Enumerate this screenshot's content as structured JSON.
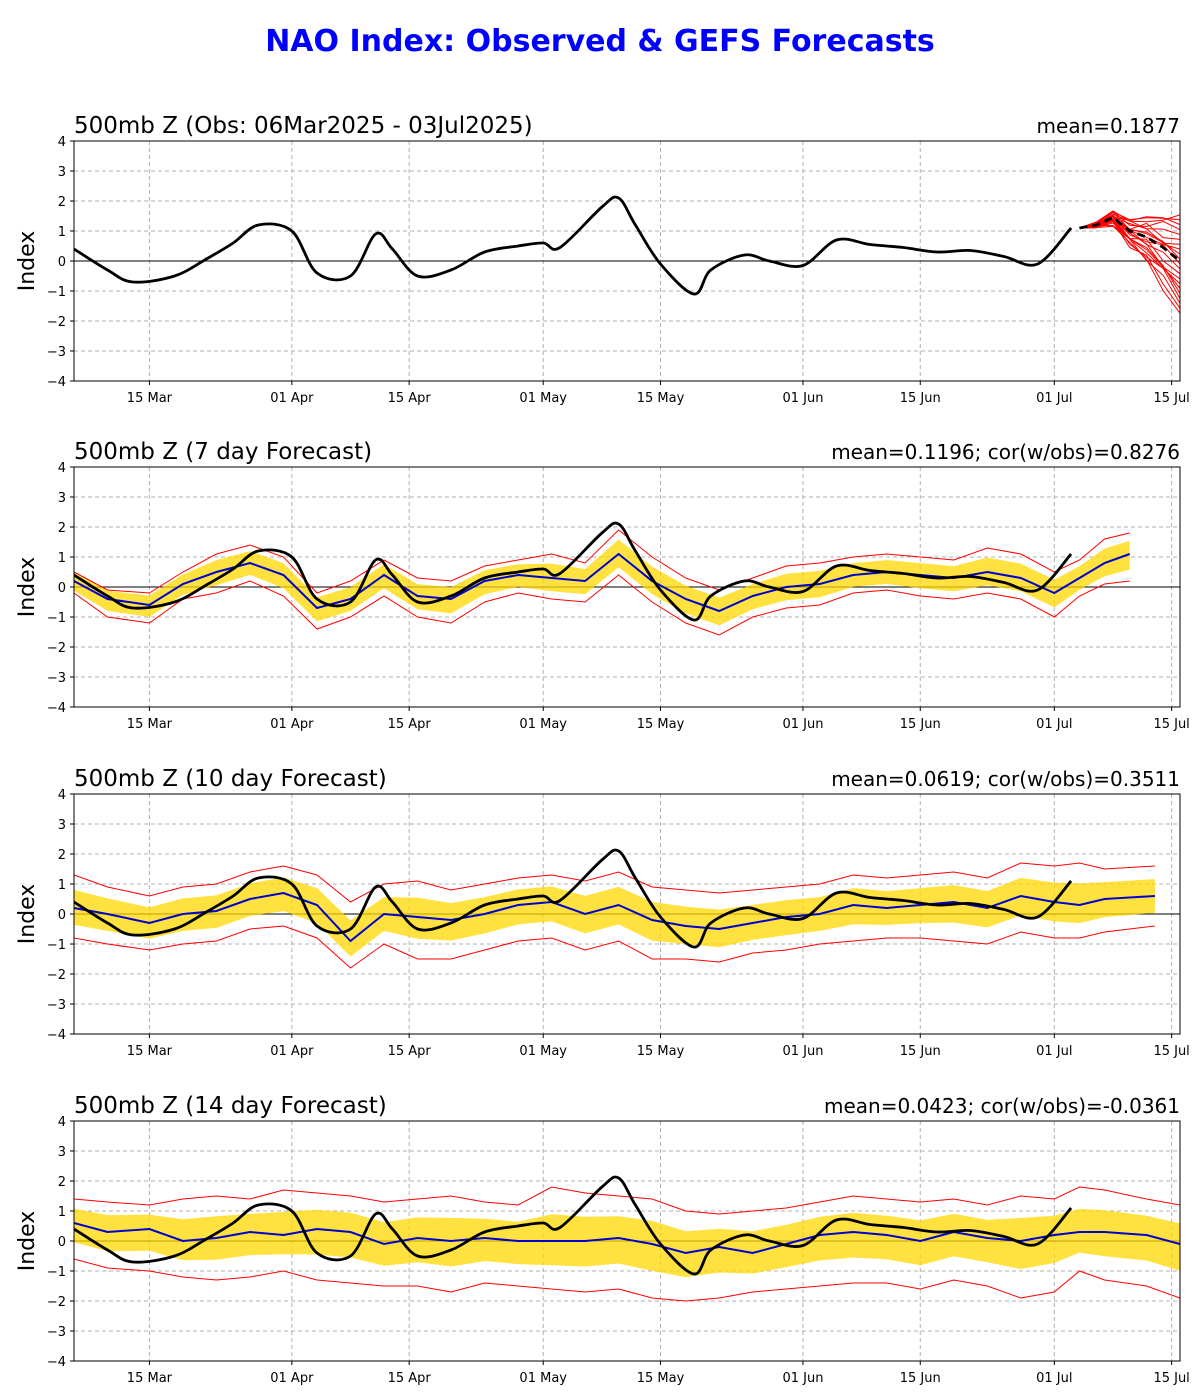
{
  "figure": {
    "title": "NAO Index: Observed & GEFS Forecasts",
    "title_color": "#0000ff"
  },
  "axis_common": {
    "ylabel": "Index",
    "ylim": [
      -4,
      4
    ],
    "yticks": [
      "4",
      "3",
      "2",
      "1",
      "0",
      "−1",
      "−2",
      "−3",
      "−4"
    ],
    "xtick_labels": [
      "15 Mar",
      "01 Apr",
      "15 Apr",
      "01 May",
      "15 May",
      "01 Jun",
      "15 Jun",
      "01 Jul",
      "15 Jul"
    ],
    "grid": "on (dashed)",
    "colors": {
      "observed": "#000000",
      "ensemble_mean": "#0000cc",
      "spread": "#ffd700",
      "bounds": "#ff0000"
    }
  },
  "chart_data": [
    {
      "type": "line",
      "title": "500mb Z (Obs: 06Mar2025 - 03Jul2025)",
      "stat": "mean=0.1877",
      "ylabel": "Index",
      "ylim": [
        -4,
        4
      ],
      "x_range": [
        "2025-03-06",
        "2025-07-16"
      ],
      "x": [
        "2025-03-06",
        "2025-03-10",
        "2025-03-13",
        "2025-03-18",
        "2025-03-22",
        "2025-03-25",
        "2025-03-28",
        "2025-04-01",
        "2025-04-04",
        "2025-04-08",
        "2025-04-11",
        "2025-04-13",
        "2025-04-16",
        "2025-04-20",
        "2025-04-24",
        "2025-04-28",
        "2025-05-01",
        "2025-05-03",
        "2025-05-08",
        "2025-05-10",
        "2025-05-12",
        "2025-05-15",
        "2025-05-19",
        "2025-05-21",
        "2025-05-25",
        "2025-05-28",
        "2025-06-01",
        "2025-06-05",
        "2025-06-09",
        "2025-06-13",
        "2025-06-17",
        "2025-06-21",
        "2025-06-25",
        "2025-06-29",
        "2025-07-03"
      ],
      "series": [
        {
          "name": "",
          "kind": "observed",
          "values": [
            0.4,
            -0.3,
            -0.7,
            -0.5,
            0.1,
            0.6,
            1.2,
            1.0,
            -0.4,
            -0.5,
            0.9,
            0.4,
            -0.5,
            -0.3,
            0.3,
            0.5,
            0.6,
            0.45,
            1.8,
            2.1,
            1.2,
            -0.1,
            -1.1,
            -0.3,
            0.2,
            0.0,
            -0.15,
            0.7,
            0.55,
            0.45,
            0.3,
            0.35,
            0.15,
            -0.1,
            1.1
          ]
        },
        {
          "name": "",
          "kind": "forecast_mean",
          "x": [
            "2025-07-04",
            "2025-07-06",
            "2025-07-08",
            "2025-07-10",
            "2025-07-12",
            "2025-07-14",
            "2025-07-16"
          ],
          "values": [
            1.1,
            1.2,
            1.45,
            1.0,
            0.8,
            0.45,
            0.0
          ]
        }
      ],
      "ensemble_members": 21,
      "ensemble_range_end": [
        -1.6,
        1.3
      ]
    },
    {
      "type": "line",
      "title": "500mb Z (7 day Forecast)",
      "stat": "mean=0.1196; cor(w/obs)=0.8276",
      "ylabel": "Index",
      "ylim": [
        -4,
        4
      ],
      "x_range": [
        "2025-03-06",
        "2025-07-16"
      ],
      "x": [
        "2025-03-06",
        "2025-03-10",
        "2025-03-15",
        "2025-03-19",
        "2025-03-23",
        "2025-03-27",
        "2025-03-31",
        "2025-04-04",
        "2025-04-08",
        "2025-04-12",
        "2025-04-16",
        "2025-04-20",
        "2025-04-24",
        "2025-04-28",
        "2025-05-02",
        "2025-05-06",
        "2025-05-10",
        "2025-05-14",
        "2025-05-18",
        "2025-05-22",
        "2025-05-26",
        "2025-05-30",
        "2025-06-03",
        "2025-06-07",
        "2025-06-11",
        "2025-06-15",
        "2025-06-19",
        "2025-06-23",
        "2025-06-27",
        "2025-07-01",
        "2025-07-04",
        "2025-07-07",
        "2025-07-10"
      ],
      "series": [
        {
          "name": "",
          "kind": "ensemble_mean",
          "values": [
            0.2,
            -0.4,
            -0.6,
            0.1,
            0.5,
            0.8,
            0.4,
            -0.7,
            -0.4,
            0.4,
            -0.3,
            -0.4,
            0.2,
            0.4,
            0.3,
            0.2,
            1.1,
            0.2,
            -0.4,
            -0.8,
            -0.3,
            0.0,
            0.1,
            0.4,
            0.5,
            0.4,
            0.3,
            0.5,
            0.3,
            -0.2,
            0.3,
            0.8,
            1.1
          ]
        },
        {
          "name": "",
          "kind": "upper_bound",
          "values": [
            0.5,
            -0.1,
            -0.2,
            0.5,
            1.1,
            1.4,
            1.0,
            -0.2,
            0.2,
            0.9,
            0.3,
            0.2,
            0.7,
            0.9,
            1.1,
            0.8,
            1.9,
            1.0,
            0.3,
            -0.1,
            0.3,
            0.7,
            0.8,
            1.0,
            1.1,
            1.0,
            0.9,
            1.3,
            1.1,
            0.5,
            0.9,
            1.6,
            1.8
          ]
        },
        {
          "name": "",
          "kind": "lower_bound",
          "values": [
            -0.2,
            -1.0,
            -1.2,
            -0.4,
            -0.2,
            0.2,
            -0.3,
            -1.4,
            -1.0,
            -0.3,
            -1.0,
            -1.2,
            -0.5,
            -0.2,
            -0.4,
            -0.5,
            0.4,
            -0.5,
            -1.2,
            -1.6,
            -1.0,
            -0.7,
            -0.6,
            -0.2,
            -0.1,
            -0.3,
            -0.4,
            -0.2,
            -0.4,
            -1.0,
            -0.3,
            0.1,
            0.2
          ]
        },
        {
          "name": "",
          "kind": "observed",
          "x": [
            "2025-03-06",
            "2025-03-10",
            "2025-03-13",
            "2025-03-18",
            "2025-03-22",
            "2025-03-25",
            "2025-03-28",
            "2025-04-01",
            "2025-04-04",
            "2025-04-08",
            "2025-04-11",
            "2025-04-13",
            "2025-04-16",
            "2025-04-20",
            "2025-04-24",
            "2025-04-28",
            "2025-05-01",
            "2025-05-03",
            "2025-05-08",
            "2025-05-10",
            "2025-05-12",
            "2025-05-15",
            "2025-05-19",
            "2025-05-21",
            "2025-05-25",
            "2025-05-28",
            "2025-06-01",
            "2025-06-05",
            "2025-06-09",
            "2025-06-13",
            "2025-06-17",
            "2025-06-21",
            "2025-06-25",
            "2025-06-29",
            "2025-07-03"
          ],
          "values": [
            0.4,
            -0.3,
            -0.7,
            -0.5,
            0.1,
            0.6,
            1.2,
            1.0,
            -0.4,
            -0.5,
            0.9,
            0.4,
            -0.5,
            -0.3,
            0.3,
            0.5,
            0.6,
            0.45,
            1.8,
            2.1,
            1.2,
            -0.1,
            -1.1,
            -0.3,
            0.2,
            0.0,
            -0.15,
            0.7,
            0.55,
            0.45,
            0.3,
            0.35,
            0.15,
            -0.1,
            1.1
          ]
        }
      ]
    },
    {
      "type": "line",
      "title": "500mb Z (10 day Forecast)",
      "stat": "mean=0.0619; cor(w/obs)=0.3511",
      "ylabel": "Index",
      "ylim": [
        -4,
        4
      ],
      "x_range": [
        "2025-03-06",
        "2025-07-16"
      ],
      "x": [
        "2025-03-06",
        "2025-03-10",
        "2025-03-15",
        "2025-03-19",
        "2025-03-23",
        "2025-03-27",
        "2025-03-31",
        "2025-04-04",
        "2025-04-08",
        "2025-04-12",
        "2025-04-16",
        "2025-04-20",
        "2025-04-24",
        "2025-04-28",
        "2025-05-02",
        "2025-05-06",
        "2025-05-10",
        "2025-05-14",
        "2025-05-18",
        "2025-05-22",
        "2025-05-26",
        "2025-05-30",
        "2025-06-03",
        "2025-06-07",
        "2025-06-11",
        "2025-06-15",
        "2025-06-19",
        "2025-06-23",
        "2025-06-27",
        "2025-07-01",
        "2025-07-04",
        "2025-07-07",
        "2025-07-13"
      ],
      "series": [
        {
          "name": "",
          "kind": "ensemble_mean",
          "values": [
            0.2,
            0.0,
            -0.3,
            0.0,
            0.1,
            0.5,
            0.7,
            0.3,
            -0.9,
            0.0,
            -0.1,
            -0.2,
            0.0,
            0.3,
            0.4,
            0.0,
            0.3,
            -0.2,
            -0.4,
            -0.5,
            -0.3,
            -0.1,
            0.0,
            0.3,
            0.2,
            0.3,
            0.4,
            0.2,
            0.6,
            0.4,
            0.3,
            0.5,
            0.6
          ]
        },
        {
          "name": "",
          "kind": "upper_bound",
          "values": [
            1.3,
            0.9,
            0.6,
            0.9,
            1.0,
            1.4,
            1.6,
            1.3,
            0.4,
            1.0,
            1.1,
            0.8,
            1.0,
            1.2,
            1.3,
            1.1,
            1.4,
            0.9,
            0.8,
            0.7,
            0.8,
            0.9,
            1.0,
            1.3,
            1.2,
            1.3,
            1.4,
            1.2,
            1.7,
            1.6,
            1.7,
            1.5,
            1.6
          ]
        },
        {
          "name": "",
          "kind": "lower_bound",
          "values": [
            -0.8,
            -1.0,
            -1.2,
            -1.0,
            -0.9,
            -0.5,
            -0.4,
            -0.8,
            -1.8,
            -1.0,
            -1.5,
            -1.5,
            -1.2,
            -0.9,
            -0.8,
            -1.2,
            -0.9,
            -1.5,
            -1.5,
            -1.6,
            -1.3,
            -1.2,
            -1.0,
            -0.9,
            -0.8,
            -0.8,
            -0.9,
            -1.0,
            -0.6,
            -0.8,
            -0.8,
            -0.6,
            -0.4
          ]
        },
        {
          "name": "",
          "kind": "observed",
          "x": [
            "2025-03-06",
            "2025-03-10",
            "2025-03-13",
            "2025-03-18",
            "2025-03-22",
            "2025-03-25",
            "2025-03-28",
            "2025-04-01",
            "2025-04-04",
            "2025-04-08",
            "2025-04-11",
            "2025-04-13",
            "2025-04-16",
            "2025-04-20",
            "2025-04-24",
            "2025-04-28",
            "2025-05-01",
            "2025-05-03",
            "2025-05-08",
            "2025-05-10",
            "2025-05-12",
            "2025-05-15",
            "2025-05-19",
            "2025-05-21",
            "2025-05-25",
            "2025-05-28",
            "2025-06-01",
            "2025-06-05",
            "2025-06-09",
            "2025-06-13",
            "2025-06-17",
            "2025-06-21",
            "2025-06-25",
            "2025-06-29",
            "2025-07-03"
          ],
          "values": [
            0.4,
            -0.3,
            -0.7,
            -0.5,
            0.1,
            0.6,
            1.2,
            1.0,
            -0.4,
            -0.5,
            0.9,
            0.4,
            -0.5,
            -0.3,
            0.3,
            0.5,
            0.6,
            0.45,
            1.8,
            2.1,
            1.2,
            -0.1,
            -1.1,
            -0.3,
            0.2,
            0.0,
            -0.15,
            0.7,
            0.55,
            0.45,
            0.3,
            0.35,
            0.15,
            -0.1,
            1.1
          ]
        }
      ]
    },
    {
      "type": "line",
      "title": "500mb Z (14 day Forecast)",
      "stat": "mean=0.0423; cor(w/obs)=-0.0361",
      "ylabel": "Index",
      "ylim": [
        -4,
        4
      ],
      "x_range": [
        "2025-03-06",
        "2025-07-16"
      ],
      "x": [
        "2025-03-06",
        "2025-03-10",
        "2025-03-15",
        "2025-03-19",
        "2025-03-23",
        "2025-03-27",
        "2025-03-31",
        "2025-04-04",
        "2025-04-08",
        "2025-04-12",
        "2025-04-16",
        "2025-04-20",
        "2025-04-24",
        "2025-04-28",
        "2025-05-02",
        "2025-05-06",
        "2025-05-10",
        "2025-05-14",
        "2025-05-18",
        "2025-05-22",
        "2025-05-26",
        "2025-05-30",
        "2025-06-03",
        "2025-06-07",
        "2025-06-11",
        "2025-06-15",
        "2025-06-19",
        "2025-06-23",
        "2025-06-27",
        "2025-07-01",
        "2025-07-04",
        "2025-07-07",
        "2025-07-12",
        "2025-07-16"
      ],
      "series": [
        {
          "name": "",
          "kind": "ensemble_mean",
          "values": [
            0.6,
            0.3,
            0.4,
            0.0,
            0.1,
            0.3,
            0.2,
            0.4,
            0.3,
            -0.1,
            0.1,
            0.0,
            0.1,
            0.0,
            0.0,
            0.0,
            0.1,
            -0.1,
            -0.4,
            -0.2,
            -0.4,
            -0.1,
            0.2,
            0.3,
            0.2,
            0.0,
            0.3,
            0.1,
            0.0,
            0.2,
            0.3,
            0.3,
            0.2,
            -0.1
          ]
        },
        {
          "name": "",
          "kind": "upper_bound",
          "values": [
            1.4,
            1.3,
            1.2,
            1.4,
            1.5,
            1.4,
            1.7,
            1.6,
            1.5,
            1.3,
            1.4,
            1.5,
            1.3,
            1.2,
            1.8,
            1.6,
            1.5,
            1.4,
            1.0,
            0.9,
            1.0,
            1.1,
            1.3,
            1.5,
            1.4,
            1.3,
            1.4,
            1.2,
            1.5,
            1.4,
            1.8,
            1.7,
            1.4,
            1.2
          ]
        },
        {
          "name": "",
          "kind": "lower_bound",
          "values": [
            -0.6,
            -0.9,
            -1.0,
            -1.2,
            -1.3,
            -1.2,
            -1.0,
            -1.3,
            -1.4,
            -1.5,
            -1.5,
            -1.7,
            -1.4,
            -1.5,
            -1.6,
            -1.7,
            -1.6,
            -1.9,
            -2.0,
            -1.9,
            -1.7,
            -1.6,
            -1.5,
            -1.4,
            -1.4,
            -1.6,
            -1.3,
            -1.5,
            -1.9,
            -1.7,
            -1.0,
            -1.3,
            -1.5,
            -1.9
          ]
        },
        {
          "name": "",
          "kind": "observed",
          "x": [
            "2025-03-06",
            "2025-03-10",
            "2025-03-13",
            "2025-03-18",
            "2025-03-22",
            "2025-03-25",
            "2025-03-28",
            "2025-04-01",
            "2025-04-04",
            "2025-04-08",
            "2025-04-11",
            "2025-04-13",
            "2025-04-16",
            "2025-04-20",
            "2025-04-24",
            "2025-04-28",
            "2025-05-01",
            "2025-05-03",
            "2025-05-08",
            "2025-05-10",
            "2025-05-12",
            "2025-05-15",
            "2025-05-19",
            "2025-05-21",
            "2025-05-25",
            "2025-05-28",
            "2025-06-01",
            "2025-06-05",
            "2025-06-09",
            "2025-06-13",
            "2025-06-17",
            "2025-06-21",
            "2025-06-25",
            "2025-06-29",
            "2025-07-03"
          ],
          "values": [
            0.4,
            -0.3,
            -0.7,
            -0.5,
            0.1,
            0.6,
            1.2,
            1.0,
            -0.4,
            -0.5,
            0.9,
            0.4,
            -0.5,
            -0.3,
            0.3,
            0.5,
            0.6,
            0.45,
            1.8,
            2.1,
            1.2,
            -0.1,
            -1.1,
            -0.3,
            0.2,
            0.0,
            -0.15,
            0.7,
            0.55,
            0.45,
            0.3,
            0.35,
            0.15,
            -0.1,
            1.1
          ]
        }
      ]
    }
  ]
}
